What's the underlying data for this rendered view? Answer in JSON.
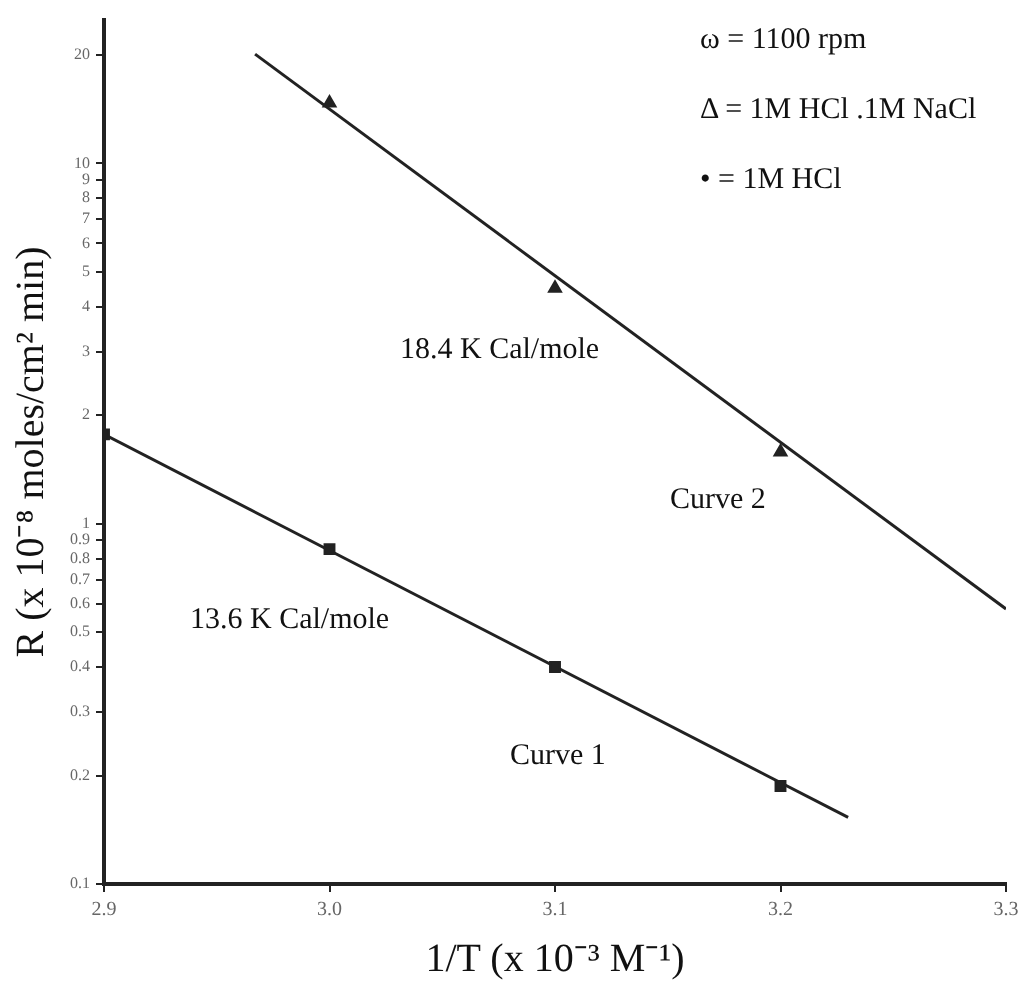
{
  "chart_data": {
    "type": "scatter",
    "xlabel": "1/T (x 10⁻³ M⁻¹)",
    "ylabel": "R (x 10⁻⁸ moles/cm² min)",
    "log": "y",
    "grid": false,
    "legend": false,
    "xlim": [
      2.9,
      3.3
    ],
    "xticks": [
      {
        "value": 2.9,
        "label": "2.9"
      },
      {
        "value": 3,
        "label": "3.0"
      },
      {
        "value": 3.1,
        "label": "3.1"
      },
      {
        "value": 3.2,
        "label": "3.2"
      },
      {
        "value": 3.3,
        "label": "3.3"
      }
    ],
    "ylim": [
      0.1,
      25
    ],
    "yticks": [
      0.1,
      0.2,
      0.3,
      0.4,
      0.5,
      0.6,
      0.7,
      0.8,
      0.9,
      1,
      2,
      3,
      4,
      5,
      6,
      7,
      8,
      9,
      10,
      20
    ],
    "series": [
      {
        "color": "#222222",
        "marker": "square",
        "x": [
          2.9,
          3.0,
          3.1,
          3.2
        ],
        "values": [
          1.77,
          0.85,
          0.4,
          0.187
        ]
      },
      {
        "type": "line",
        "color": "#222222",
        "marker": "none",
        "x": [
          2.9,
          3.23
        ],
        "values": [
          1.77,
          0.153
        ]
      },
      {
        "color": "#222222",
        "marker": "triangle",
        "x": [
          3.0,
          3.1,
          3.2
        ],
        "values": [
          14.7,
          4.5,
          1.58
        ]
      },
      {
        "type": "line",
        "color": "#222222",
        "marker": "none",
        "x": [
          2.967,
          3.3
        ],
        "values": [
          20.1,
          0.58
        ]
      }
    ],
    "annotations": [
      "ω = 1100 rpm",
      "Δ = 1M HCl .1M NaCl",
      "• = 1M HCl",
      "18.4 K Cal/mole",
      "Curve 2",
      "13.6 K Cal/mole",
      "Curve 1"
    ]
  }
}
